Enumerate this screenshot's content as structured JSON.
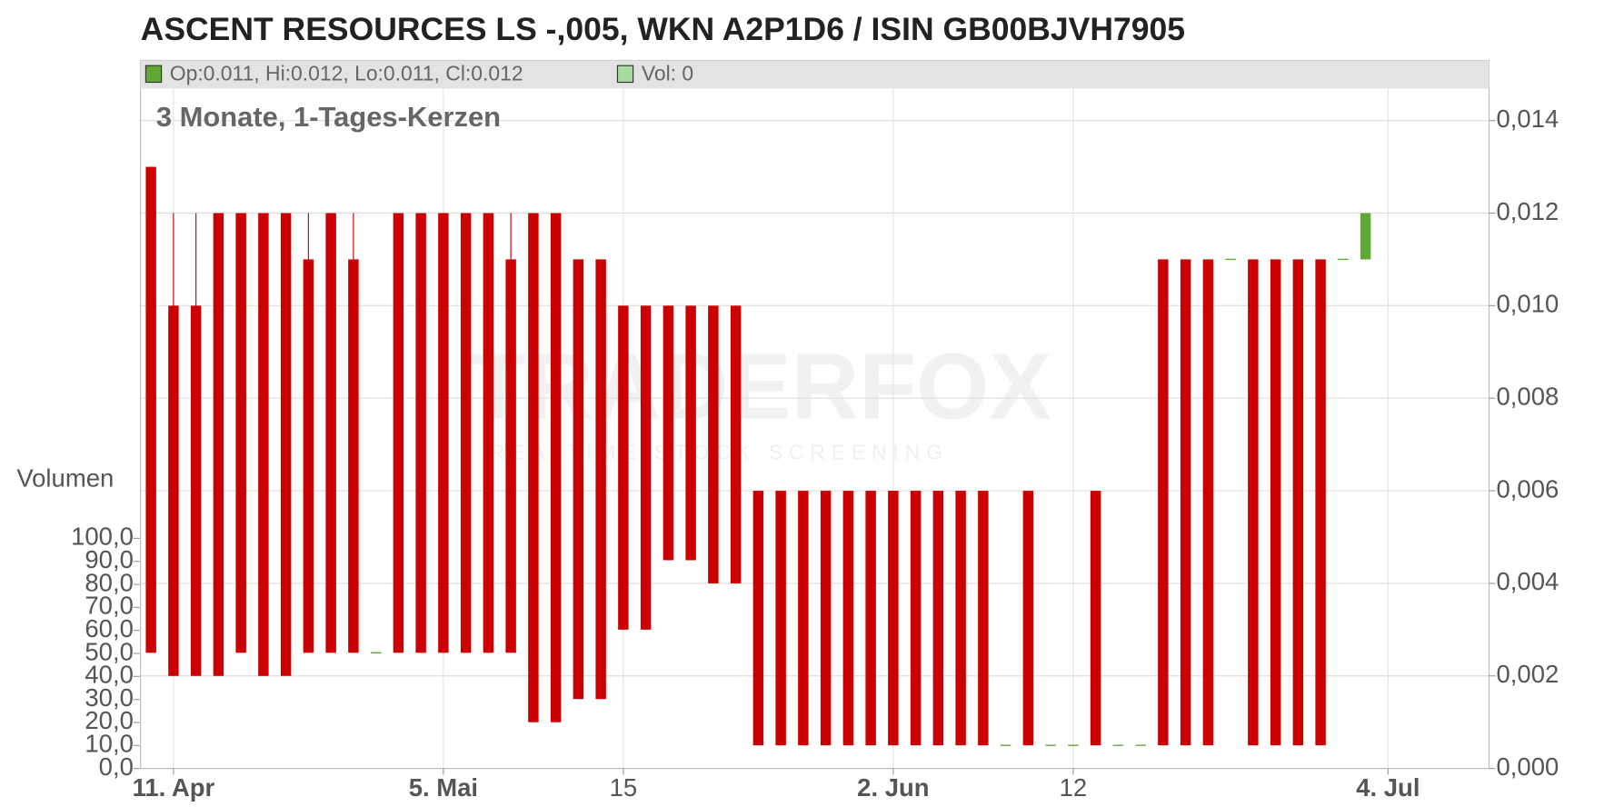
{
  "chart_data": {
    "type": "candlestick",
    "title": "ASCENT RESOURCES LS -,005, WKN A2P1D6 / ISIN GB00BJVH7905",
    "subtitle": "3 Monate, 1-Tages-Kerzen",
    "legend_ohlc": "Op:0.011, Hi:0.012, Lo:0.011, Cl:0.012",
    "legend_volume": "Vol: 0",
    "volume_label": "Volumen",
    "watermark": "TRADERFOX",
    "watermark_sub": "REALTIME STOCK SCREENING",
    "categories": [
      null,
      "11. Apr",
      null,
      null,
      null,
      null,
      null,
      null,
      null,
      null,
      null,
      null,
      null,
      "5. Mai",
      null,
      null,
      null,
      null,
      null,
      null,
      null,
      "15",
      null,
      null,
      null,
      null,
      null,
      null,
      null,
      null,
      null,
      null,
      null,
      "2. Jun",
      null,
      null,
      null,
      null,
      null,
      null,
      null,
      "12",
      null,
      null,
      null,
      null,
      null,
      null,
      null,
      null,
      null,
      null,
      null,
      null,
      null,
      "4. Jul"
    ],
    "open": [
      0.013,
      0.01,
      0.01,
      0.012,
      0.012,
      0.012,
      0.012,
      0.011,
      0.012,
      0.011,
      0.0025,
      0.012,
      0.012,
      0.012,
      0.012,
      0.012,
      0.011,
      0.012,
      0.012,
      0.011,
      0.011,
      0.01,
      0.01,
      0.01,
      0.01,
      0.01,
      0.01,
      0.006,
      0.006,
      0.006,
      0.006,
      0.006,
      0.006,
      0.006,
      0.006,
      0.006,
      0.006,
      0.006,
      0.0005,
      0.006,
      0.0005,
      0.0005,
      0.006,
      0.0005,
      0.0005,
      0.011,
      0.011,
      0.011,
      0.011,
      0.011,
      0.011,
      0.011,
      0.011,
      0.011,
      0.011,
      null
    ],
    "high": [
      0.013,
      0.012,
      0.012,
      0.012,
      0.012,
      0.012,
      0.012,
      0.012,
      0.012,
      0.012,
      0.0025,
      0.012,
      0.012,
      0.012,
      0.012,
      0.012,
      0.012,
      0.012,
      0.012,
      0.011,
      0.011,
      0.01,
      0.01,
      0.01,
      0.01,
      0.01,
      0.01,
      0.006,
      0.006,
      0.006,
      0.006,
      0.006,
      0.006,
      0.006,
      0.006,
      0.006,
      0.006,
      0.006,
      0.0005,
      0.006,
      0.0005,
      0.0005,
      0.006,
      0.0005,
      0.0005,
      0.011,
      0.011,
      0.011,
      0.011,
      0.011,
      0.011,
      0.011,
      0.011,
      0.011,
      0.012,
      null
    ],
    "low": [
      0.0025,
      0.002,
      0.002,
      0.002,
      0.0025,
      0.002,
      0.002,
      0.0025,
      0.0025,
      0.0025,
      0.0025,
      0.0025,
      0.0025,
      0.0025,
      0.0025,
      0.0025,
      0.0025,
      0.001,
      0.001,
      0.0015,
      0.0015,
      0.003,
      0.003,
      0.0045,
      0.0045,
      0.004,
      0.004,
      0.0005,
      0.0005,
      0.0005,
      0.0005,
      0.0005,
      0.0005,
      0.0005,
      0.0005,
      0.0005,
      0.0005,
      0.0005,
      0.0005,
      0.0005,
      0.0005,
      0.0005,
      0.0005,
      0.0005,
      0.0005,
      0.0005,
      0.0005,
      0.0005,
      0.011,
      0.0005,
      0.0005,
      0.0005,
      0.0005,
      0.011,
      0.011,
      null
    ],
    "close": [
      0.0025,
      0.002,
      0.002,
      0.002,
      0.0025,
      0.002,
      0.002,
      0.0025,
      0.0025,
      0.0025,
      0.0025,
      0.0025,
      0.0025,
      0.0025,
      0.0025,
      0.0025,
      0.0025,
      0.001,
      0.001,
      0.0015,
      0.0015,
      0.003,
      0.003,
      0.0045,
      0.0045,
      0.004,
      0.004,
      0.0005,
      0.0005,
      0.0005,
      0.0005,
      0.0005,
      0.0005,
      0.0005,
      0.0005,
      0.0005,
      0.0005,
      0.0005,
      0.0005,
      0.0005,
      0.0005,
      0.0005,
      0.0005,
      0.0005,
      0.0005,
      0.0005,
      0.0005,
      0.0005,
      0.011,
      0.0005,
      0.0005,
      0.0005,
      0.0005,
      0.011,
      0.012,
      null
    ],
    "up_color": "#5fa832",
    "down_color": "#cc0000",
    "ylim": [
      0,
      0.0153
    ],
    "yticks": [
      {
        "value": 0,
        "label": "0,000"
      },
      {
        "value": 0.002,
        "label": "0,002"
      },
      {
        "value": 0.004,
        "label": "0,004"
      },
      {
        "value": 0.006,
        "label": "0,006"
      },
      {
        "value": 0.008,
        "label": "0,008"
      },
      {
        "value": 0.01,
        "label": "0,010"
      },
      {
        "value": 0.012,
        "label": "0,012"
      },
      {
        "value": 0.014,
        "label": "0,014"
      }
    ],
    "y2lim": [
      0,
      100
    ],
    "y2ticks": [
      {
        "value": 0,
        "label": "0,0"
      },
      {
        "value": 10,
        "label": "10,0"
      },
      {
        "value": 20,
        "label": "20,0"
      },
      {
        "value": 30,
        "label": "30,0"
      },
      {
        "value": 40,
        "label": "40,0"
      },
      {
        "value": 50,
        "label": "50,0"
      },
      {
        "value": 60,
        "label": "60,0"
      },
      {
        "value": 70,
        "label": "70,0"
      },
      {
        "value": 80,
        "label": "80,0"
      },
      {
        "value": 90,
        "label": "90,0"
      },
      {
        "value": 100,
        "label": "100,0"
      }
    ],
    "grid": true
  }
}
